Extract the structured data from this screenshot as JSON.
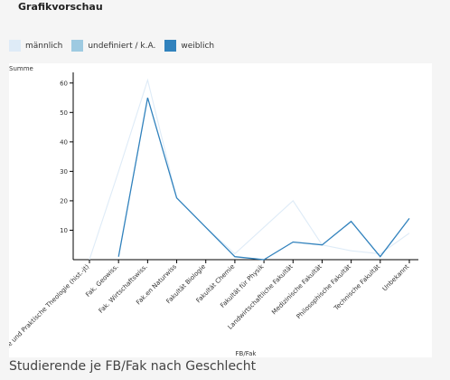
{
  "header": {
    "title": "Grafikvorschau"
  },
  "legend": [
    {
      "label": "männlich",
      "color": "#deebf7"
    },
    {
      "label": "undefiniert / k.A.",
      "color": "#9ecae1"
    },
    {
      "label": "weiblich",
      "color": "#3182bd"
    }
  ],
  "caption": "Studierende je FB/Fak nach Geschlecht",
  "chart_data": {
    "type": "line",
    "title": "",
    "xlabel": "FB/Fak",
    "ylabel": "Summe",
    "ylim": [
      0,
      63
    ],
    "yticks": [
      10,
      20,
      30,
      40,
      50,
      60
    ],
    "grid": false,
    "categories": [
      "Fak. für Systematische und Praktische Theologie (hist.-jt)",
      "Fak. Geowiss.",
      "Fak. Wirtschaftswiss.",
      "Fak.en Naturwiss",
      "Fakultät Biologie",
      "Fakultät Chemie",
      "Fakultät für Physik",
      "Landwirtschaftliche Fakultät",
      "Medizinische Fakultät",
      "Philosophische Fakultät",
      "Technische Fakultät",
      "Unbekannt"
    ],
    "series": [
      {
        "name": "männlich",
        "color": "#deebf7",
        "values": [
          0,
          30,
          61,
          21,
          11,
          2,
          11,
          20,
          5,
          3,
          2,
          9
        ]
      },
      {
        "name": "undefiniert / k.A.",
        "color": "#9ecae1",
        "values": [
          null,
          null,
          null,
          null,
          null,
          null,
          null,
          null,
          null,
          null,
          null,
          null
        ]
      },
      {
        "name": "weiblich",
        "color": "#3182bd",
        "values": [
          null,
          1,
          55,
          21,
          11,
          1,
          0,
          6,
          5,
          13,
          1,
          14
        ]
      }
    ]
  }
}
